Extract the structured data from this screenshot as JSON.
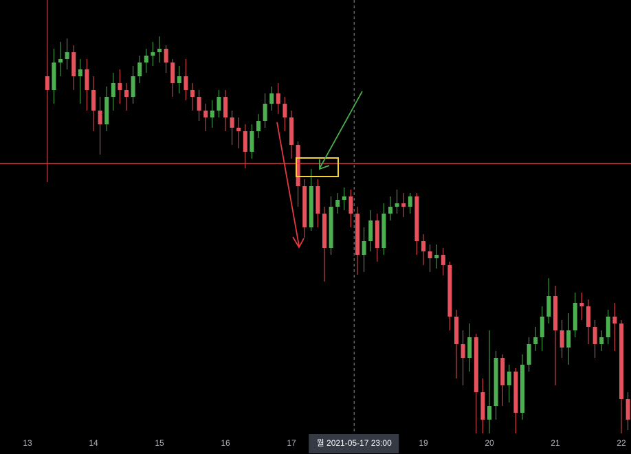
{
  "chart_data": {
    "type": "candlestick",
    "xlim": [
      12.583,
      22.146
    ],
    "ylim": [
      0,
      631
    ],
    "xticks": [
      13,
      14,
      15,
      16,
      17,
      19,
      20,
      21,
      22
    ],
    "up_color": "#4caf50",
    "down_color": "#e5525b",
    "price_line": 393,
    "price_line_color": "#e5393f",
    "crosshair_x": 17.95,
    "crosshair_label": "월 2021-05-17   23:00",
    "x": [
      13.3,
      13.4,
      13.5,
      13.6,
      13.7,
      13.8,
      13.9,
      14.0,
      14.1,
      14.2,
      14.3,
      14.4,
      14.5,
      14.6,
      14.7,
      14.8,
      14.9,
      15.0,
      15.1,
      15.2,
      15.3,
      15.4,
      15.5,
      15.6,
      15.7,
      15.8,
      15.9,
      16.0,
      16.1,
      16.2,
      16.3,
      16.4,
      16.5,
      16.6,
      16.7,
      16.8,
      16.9,
      17.0,
      17.1,
      17.2,
      17.3,
      17.4,
      17.5,
      17.6,
      17.7,
      17.8,
      17.9,
      18.0,
      18.1,
      18.2,
      18.3,
      18.4,
      18.5,
      18.6,
      18.7,
      18.8,
      18.9,
      19.0,
      19.1,
      19.2,
      19.3,
      19.4,
      19.5,
      19.6,
      19.7,
      19.8,
      19.9,
      20.0,
      20.1,
      20.2,
      20.3,
      20.4,
      20.5,
      20.6,
      20.7,
      20.8,
      20.9,
      21.0,
      21.1,
      21.2,
      21.3,
      21.4,
      21.5,
      21.6,
      21.7,
      21.8,
      21.9,
      22.0,
      22.1
    ],
    "open": [
      520,
      500,
      540,
      545,
      555,
      520,
      530,
      500,
      470,
      450,
      490,
      510,
      500,
      490,
      520,
      540,
      550,
      555,
      560,
      540,
      510,
      520,
      500,
      490,
      470,
      460,
      470,
      490,
      460,
      445,
      440,
      410,
      440,
      455,
      480,
      495,
      480,
      460,
      420,
      360,
      300,
      360,
      320,
      270,
      330,
      340,
      345,
      320,
      260,
      280,
      310,
      270,
      320,
      330,
      335,
      330,
      345,
      280,
      265,
      255,
      260,
      245,
      170,
      130,
      110,
      140,
      60,
      20,
      40,
      110,
      70,
      90,
      30,
      100,
      130,
      140,
      170,
      200,
      150,
      125,
      150,
      190,
      185,
      155,
      130,
      140,
      170,
      160,
      50
    ],
    "high": [
      631,
      560,
      570,
      575,
      565,
      545,
      545,
      520,
      490,
      505,
      525,
      530,
      510,
      535,
      550,
      560,
      570,
      578,
      565,
      545,
      535,
      545,
      510,
      500,
      480,
      485,
      500,
      500,
      470,
      460,
      450,
      450,
      465,
      495,
      505,
      510,
      490,
      470,
      425,
      370,
      385,
      370,
      330,
      345,
      350,
      358,
      355,
      330,
      300,
      325,
      320,
      335,
      345,
      355,
      350,
      350,
      350,
      290,
      275,
      275,
      270,
      250,
      180,
      150,
      160,
      145,
      80,
      150,
      120,
      115,
      100,
      95,
      115,
      140,
      155,
      185,
      226,
      215,
      165,
      175,
      205,
      205,
      195,
      165,
      150,
      180,
      190,
      165,
      60
    ],
    "low": [
      366,
      480,
      520,
      530,
      500,
      480,
      470,
      440,
      406,
      440,
      470,
      480,
      470,
      480,
      510,
      525,
      535,
      540,
      525,
      490,
      495,
      485,
      470,
      455,
      440,
      445,
      460,
      440,
      420,
      415,
      386,
      400,
      430,
      445,
      470,
      465,
      440,
      400,
      330,
      285,
      295,
      300,
      221,
      260,
      320,
      325,
      300,
      231,
      235,
      265,
      250,
      260,
      310,
      320,
      315,
      320,
      260,
      245,
      235,
      240,
      230,
      150,
      80,
      70,
      90,
      0,
      0,
      0,
      20,
      40,
      45,
      0,
      20,
      90,
      120,
      120,
      160,
      70,
      110,
      100,
      140,
      165,
      130,
      110,
      120,
      130,
      120,
      0,
      5
    ],
    "close": [
      500,
      540,
      545,
      555,
      520,
      530,
      500,
      470,
      450,
      490,
      510,
      500,
      490,
      520,
      540,
      550,
      555,
      560,
      540,
      510,
      520,
      500,
      490,
      470,
      460,
      470,
      490,
      460,
      445,
      440,
      410,
      440,
      455,
      480,
      495,
      480,
      460,
      420,
      360,
      300,
      360,
      320,
      270,
      330,
      340,
      345,
      320,
      260,
      280,
      310,
      270,
      320,
      330,
      335,
      330,
      345,
      280,
      265,
      255,
      260,
      245,
      170,
      130,
      110,
      140,
      60,
      20,
      40,
      110,
      70,
      90,
      30,
      100,
      130,
      140,
      170,
      200,
      150,
      125,
      150,
      190,
      185,
      155,
      130,
      140,
      170,
      160,
      50,
      20
    ]
  }
}
